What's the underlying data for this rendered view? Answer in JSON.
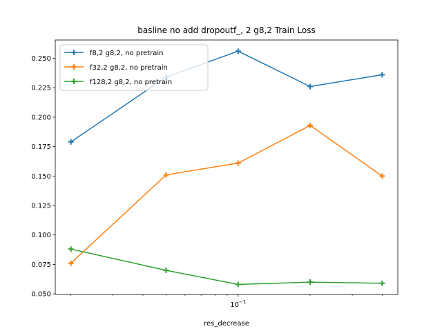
{
  "chart_data": {
    "type": "line",
    "title": "basline no add dropoutf_, 2 g8,2 Train Loss",
    "xlabel": "res_decrease",
    "ylabel": "",
    "xscale": "log",
    "x": [
      0.02,
      0.05,
      0.1,
      0.2,
      0.4
    ],
    "xlim": [
      0.0172,
      0.465
    ],
    "ylim": [
      0.0495,
      0.2655
    ],
    "yticks": [
      0.05,
      0.075,
      0.1,
      0.125,
      0.15,
      0.175,
      0.2,
      0.225,
      0.25
    ],
    "ytick_labels": [
      "0.050",
      "0.075",
      "0.100",
      "0.125",
      "0.150",
      "0.175",
      "0.200",
      "0.225",
      "0.250"
    ],
    "xtick_major_label": "10^-1",
    "xtick_major_base": "10",
    "xtick_major_exp": "−1",
    "xtick_major_value": 0.1,
    "xtick_minor_values": [
      0.02,
      0.03,
      0.04,
      0.05,
      0.06,
      0.07,
      0.08,
      0.09,
      0.2,
      0.3,
      0.4
    ],
    "grid": false,
    "legend_position": "top-left",
    "series": [
      {
        "name": "f8,2 g8,2, no pretrain",
        "color": "#1f77b4",
        "marker": "plus",
        "values": [
          0.179,
          0.234,
          0.256,
          0.226,
          0.236
        ]
      },
      {
        "name": "f32,2 g8,2, no pretrain",
        "color": "#ff7f0e",
        "marker": "plus",
        "values": [
          0.076,
          0.151,
          0.161,
          0.193,
          0.15
        ]
      },
      {
        "name": "f128,2 g8,2, no pretrain",
        "color": "#2ca02c",
        "marker": "plus",
        "values": [
          0.088,
          0.07,
          0.058,
          0.06,
          0.059
        ]
      }
    ]
  }
}
